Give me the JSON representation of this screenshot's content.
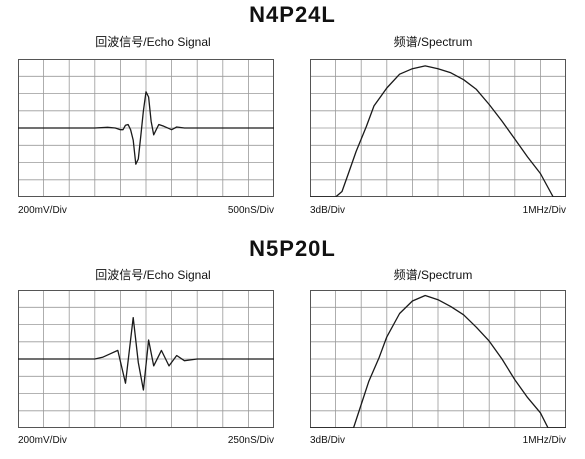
{
  "colors": {
    "grid": "#9a9a9a",
    "frame": "#555555",
    "trace": "#1a1a1a"
  },
  "chart_data": [
    {
      "type": "line",
      "group_title": "N4P24L",
      "title": "回波信号/Echo Signal",
      "y_scale_label": "200mV/Div",
      "x_scale_label": "500nS/Div",
      "grid": true,
      "x": [
        0,
        1,
        2,
        3,
        3.5,
        3.8,
        4.0,
        4.1,
        4.2,
        4.3,
        4.4,
        4.5,
        4.6,
        4.7,
        4.8,
        4.9,
        5.0,
        5.1,
        5.2,
        5.3,
        5.4,
        5.5,
        5.7,
        6,
        6.2,
        6.5,
        7,
        8,
        9,
        10
      ],
      "y": [
        0,
        0,
        0,
        0,
        0.02,
        0,
        -0.05,
        -0.05,
        0.08,
        0.1,
        -0.05,
        -0.35,
        -1.05,
        -0.9,
        -0.2,
        0.5,
        1.05,
        0.9,
        0.2,
        -0.2,
        -0.05,
        0.1,
        0.05,
        -0.05,
        0.03,
        0,
        0,
        0,
        0,
        0
      ],
      "xlim": [
        0,
        10
      ],
      "ylim": [
        -2,
        2
      ]
    },
    {
      "type": "line",
      "title": "频谱/Spectrum",
      "y_scale_label": "3dB/Div",
      "x_scale_label": "1MHz/Div",
      "grid": true,
      "x": [
        0,
        1,
        1.25,
        1.5,
        1.8,
        2.2,
        2.5,
        3,
        3.5,
        4,
        4.5,
        5,
        5.5,
        6,
        6.5,
        7,
        7.5,
        8,
        8.5,
        9,
        9.5,
        10
      ],
      "y": [
        0,
        0,
        0.4,
        1.7,
        3.3,
        5.1,
        6.6,
        7.9,
        8.9,
        9.3,
        9.5,
        9.3,
        9,
        8.5,
        7.8,
        6.7,
        5.5,
        4.2,
        2.9,
        1.7,
        0,
        0
      ],
      "xlim": [
        0,
        10
      ],
      "ylim": [
        0,
        10
      ]
    },
    {
      "type": "line",
      "group_title": "N5P20L",
      "title": "回波信号/Echo Signal",
      "y_scale_label": "200mV/Div",
      "x_scale_label": "250nS/Div",
      "grid": true,
      "x": [
        0,
        1,
        2,
        3,
        3.3,
        3.6,
        3.9,
        4.2,
        4.5,
        4.7,
        4.9,
        5.1,
        5.3,
        5.6,
        5.9,
        6.2,
        6.5,
        7,
        8,
        9,
        10
      ],
      "y": [
        0,
        0,
        0,
        0,
        0.05,
        0.15,
        0.25,
        -0.7,
        1.2,
        -0.1,
        -0.9,
        0.55,
        -0.2,
        0.25,
        -0.2,
        0.1,
        -0.05,
        0,
        0,
        0,
        0
      ],
      "xlim": [
        0,
        10
      ],
      "ylim": [
        -2,
        2
      ]
    },
    {
      "type": "line",
      "title": "频谱/Spectrum",
      "y_scale_label": "3dB/Div",
      "x_scale_label": "1MHz/Div",
      "grid": true,
      "x": [
        0,
        1.7,
        2,
        2.3,
        2.7,
        3,
        3.5,
        4,
        4.5,
        5,
        5.5,
        6,
        6.5,
        7,
        7.5,
        8,
        8.5,
        9,
        9.3,
        10
      ],
      "y": [
        0,
        0,
        1.7,
        3.4,
        5.1,
        6.6,
        8.3,
        9.2,
        9.6,
        9.3,
        8.8,
        8.2,
        7.3,
        6.3,
        5,
        3.5,
        2.2,
        1.1,
        0,
        0
      ],
      "xlim": [
        0,
        10
      ],
      "ylim": [
        0,
        10
      ]
    }
  ]
}
